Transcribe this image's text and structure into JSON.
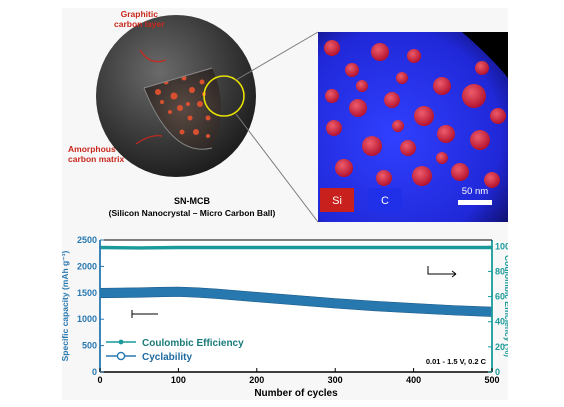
{
  "schematic": {
    "label_graphitic": "Graphitic carbon layer",
    "label_graphitic_line1": "Graphitic",
    "label_graphitic_line2": "carbon layer",
    "label_amorphous_line1": "Amorphous",
    "label_amorphous_line2": "carbon matrix",
    "title": "SN-MCB",
    "subtitle": "(Silicon Nanocrystal – Micro Carbon Ball)"
  },
  "micrograph": {
    "legend_si": "Si",
    "legend_c": "C",
    "scale_bar": "50 nm",
    "colors": {
      "si": "#d8202a",
      "c": "#2030e8",
      "background": "#000000"
    }
  },
  "chart_data": {
    "type": "line",
    "xlabel": "Number of cycles",
    "ylabel_left": "Specific capacity (mAh g⁻¹)",
    "ylabel_right": "Coulombic Efficiency (%)",
    "xlim": [
      0,
      500
    ],
    "ylim_left": [
      0,
      2500
    ],
    "ylim_right": [
      0,
      105
    ],
    "xticks": [
      0,
      100,
      200,
      300,
      400,
      500
    ],
    "yticks_left": [
      0,
      500,
      1000,
      1500,
      2000,
      2500
    ],
    "yticks_right": [
      0,
      20,
      40,
      60,
      80,
      100
    ],
    "annotation": "0.01 - 1.5 V, 0.2 C",
    "legend_position": "bottom-left",
    "series": [
      {
        "name": "Coulombic Efficiency",
        "axis": "right",
        "color": "#1a9a9a",
        "x": [
          0,
          50,
          100,
          150,
          200,
          250,
          300,
          350,
          400,
          450,
          500
        ],
        "values": [
          99,
          98.7,
          99,
          99,
          99,
          99,
          99,
          99,
          99,
          99,
          99
        ]
      },
      {
        "name": "Cyclability",
        "axis": "left",
        "color": "#2878b0",
        "x": [
          0,
          25,
          50,
          75,
          100,
          125,
          150,
          200,
          250,
          300,
          350,
          400,
          450,
          500
        ],
        "values": [
          1495,
          1500,
          1505,
          1515,
          1520,
          1505,
          1480,
          1420,
          1360,
          1300,
          1250,
          1210,
          1170,
          1140
        ]
      }
    ]
  }
}
